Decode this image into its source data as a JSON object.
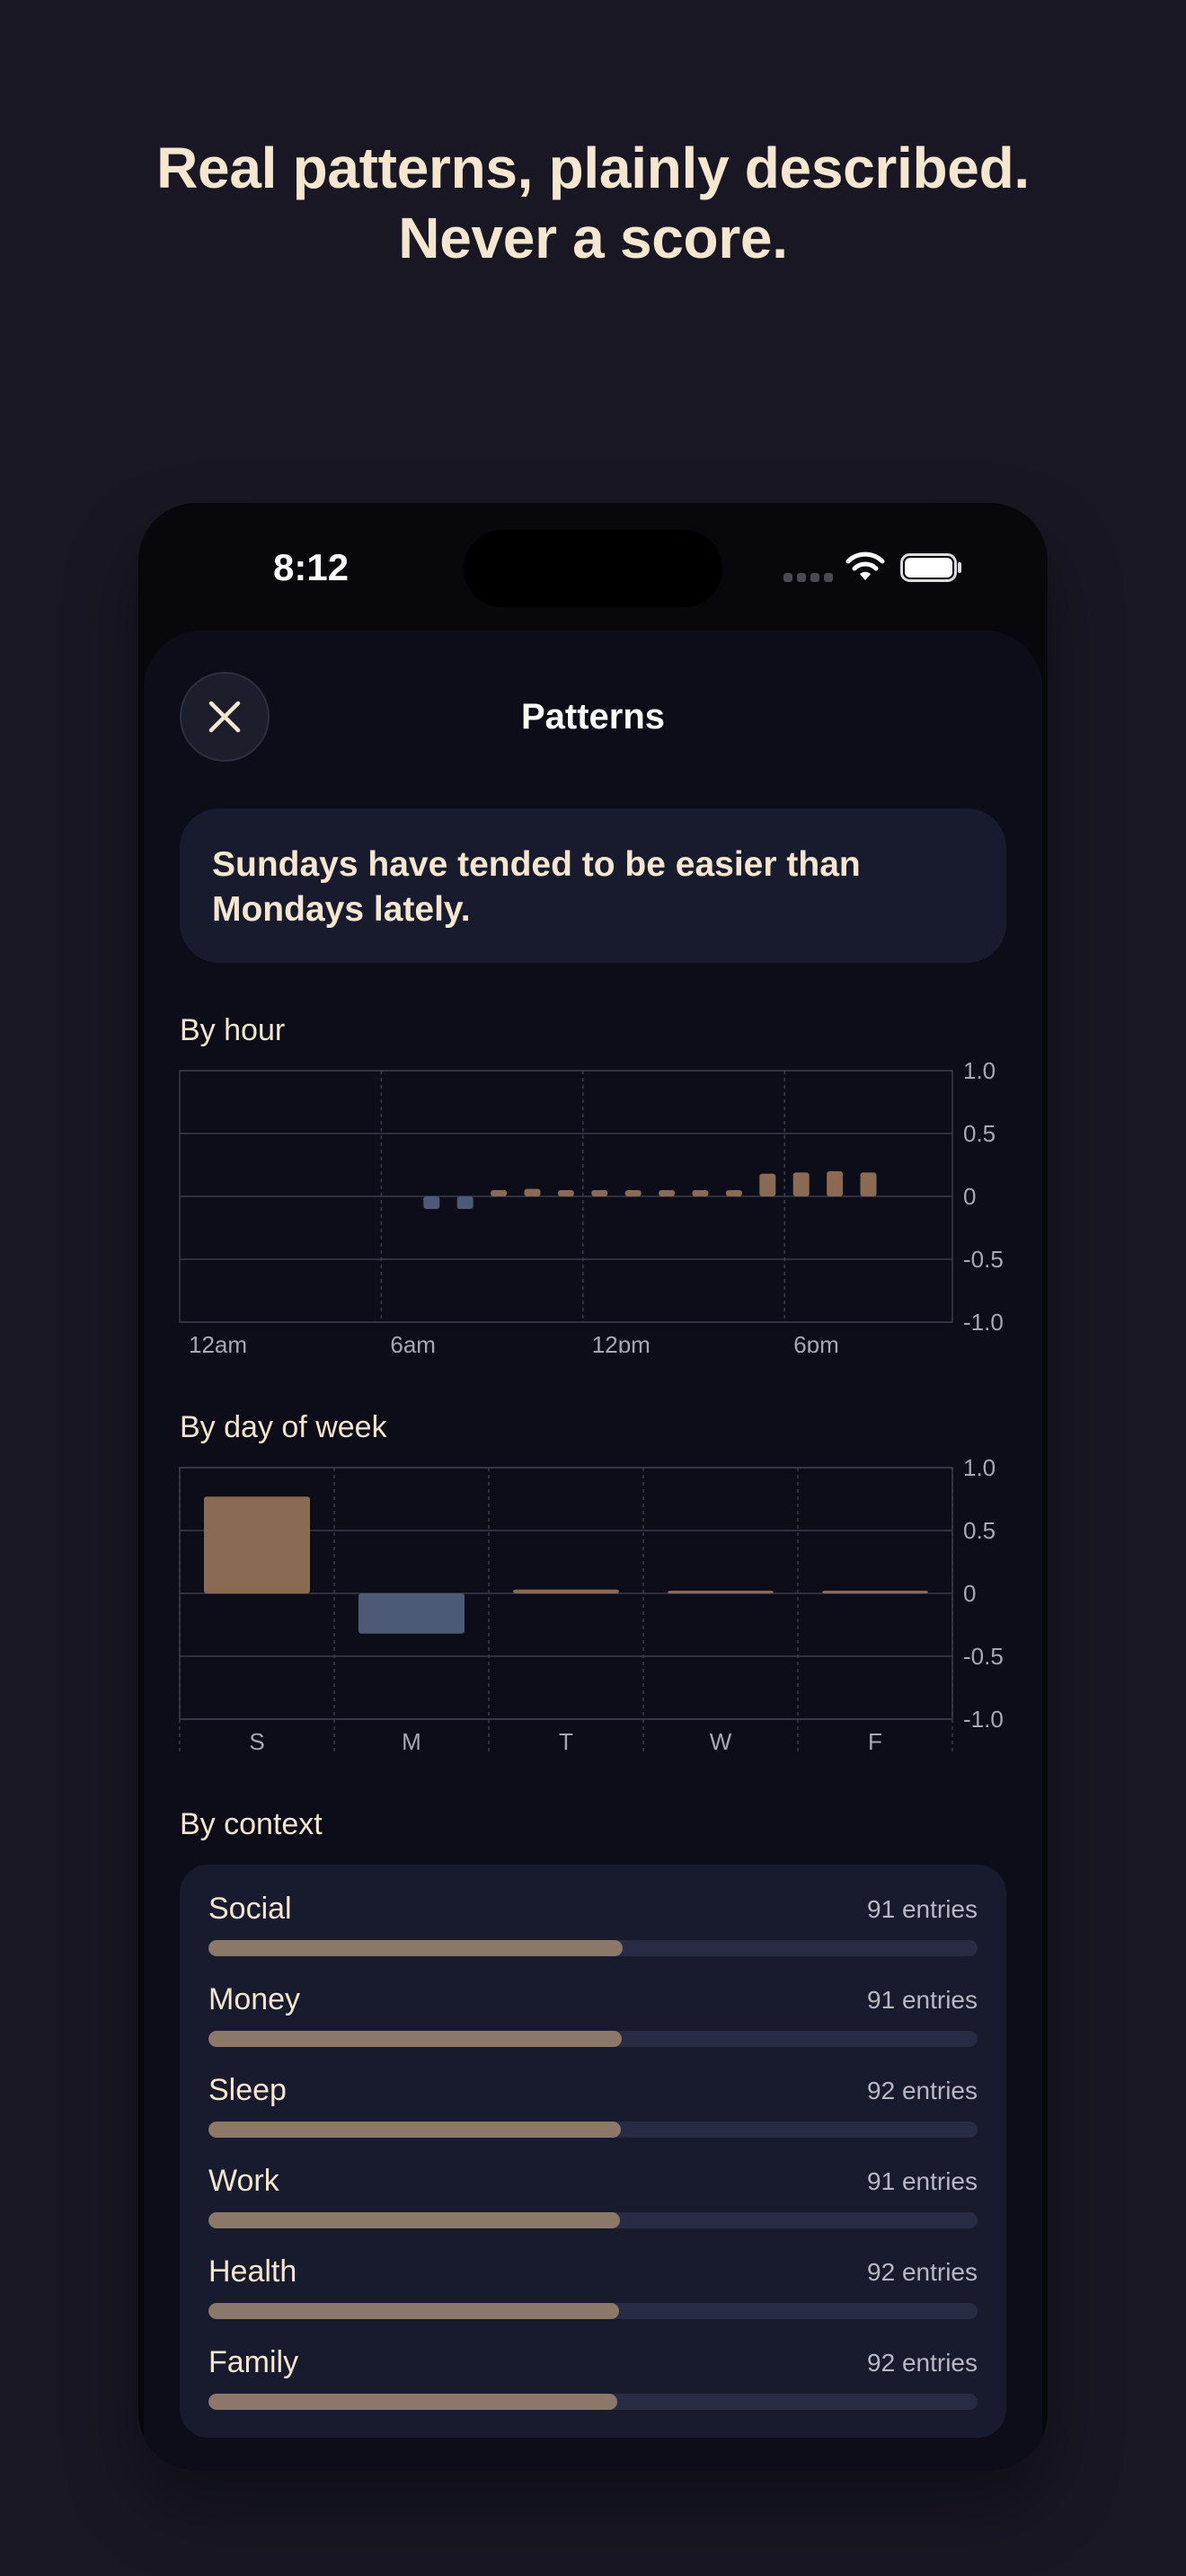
{
  "headline": {
    "line1": "Real patterns, plainly described.",
    "line2": "Never a score."
  },
  "status_bar": {
    "time": "8:12"
  },
  "sheet": {
    "title": "Patterns",
    "close_icon": "close-icon",
    "insight": "Sundays have tended to be easier than Mondays lately."
  },
  "colors": {
    "positive": "#8a6a52",
    "negative": "#4d5a75",
    "accent_text": "#f5e6cf"
  },
  "sections": {
    "by_hour": "By hour",
    "by_day": "By day of week",
    "by_context": "By context"
  },
  "chart_data": [
    {
      "type": "bar",
      "title": "By hour",
      "x": [
        0,
        1,
        2,
        3,
        4,
        5,
        6,
        7,
        8,
        9,
        10,
        11,
        12,
        13,
        14,
        15,
        16,
        17,
        18,
        19,
        20,
        21,
        22,
        23
      ],
      "values": [
        null,
        null,
        null,
        null,
        null,
        null,
        null,
        -0.1,
        -0.1,
        0.05,
        0.06,
        0.05,
        0.05,
        0.05,
        0.05,
        0.05,
        0.05,
        0.18,
        0.19,
        0.2,
        0.19,
        null,
        null,
        null
      ],
      "x_tick_labels": [
        {
          "x": 0,
          "label": "12am"
        },
        {
          "x": 6,
          "label": "6am"
        },
        {
          "x": 12,
          "label": "12pm"
        },
        {
          "x": 18,
          "label": "6pm"
        }
      ],
      "y_ticks": [
        "1.0",
        "0.5",
        "0",
        "-0.5",
        "-1.0"
      ],
      "ylim": [
        -1,
        1
      ],
      "grid": true
    },
    {
      "type": "bar",
      "title": "By day of week",
      "categories": [
        "S",
        "M",
        "T",
        "W",
        "F"
      ],
      "values": [
        0.77,
        -0.32,
        0.03,
        0.01,
        0.01
      ],
      "y_ticks": [
        "1.0",
        "0.5",
        "0",
        "-0.5",
        "-1.0"
      ],
      "ylim": [
        -1,
        1
      ],
      "grid": true
    }
  ],
  "context": [
    {
      "name": "Social",
      "count": "91 entries",
      "fraction": 0.538
    },
    {
      "name": "Money",
      "count": "91 entries",
      "fraction": 0.537
    },
    {
      "name": "Sleep",
      "count": "92 entries",
      "fraction": 0.536
    },
    {
      "name": "Work",
      "count": "91 entries",
      "fraction": 0.535
    },
    {
      "name": "Health",
      "count": "92 entries",
      "fraction": 0.534
    },
    {
      "name": "Family",
      "count": "92 entries",
      "fraction": 0.532
    }
  ]
}
